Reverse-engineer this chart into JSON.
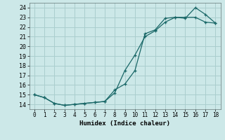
{
  "xlabel": "Humidex (Indice chaleur)",
  "background_color": "#cce8e8",
  "grid_color": "#aacece",
  "line_color": "#1a6868",
  "xlim": [
    -0.5,
    18.5
  ],
  "ylim": [
    13.5,
    24.5
  ],
  "xticks": [
    0,
    1,
    2,
    3,
    4,
    5,
    6,
    7,
    8,
    9,
    10,
    11,
    12,
    13,
    14,
    15,
    16,
    17,
    18
  ],
  "yticks": [
    14,
    15,
    16,
    17,
    18,
    19,
    20,
    21,
    22,
    23,
    24
  ],
  "series1_x": [
    0,
    1,
    2,
    3,
    4,
    5,
    6,
    7,
    8,
    9,
    10,
    11,
    12,
    13,
    14,
    15,
    16,
    17,
    18
  ],
  "series1_y": [
    15.0,
    14.7,
    14.1,
    13.9,
    14.0,
    14.1,
    14.2,
    14.3,
    15.5,
    16.1,
    17.5,
    21.3,
    21.7,
    22.9,
    23.0,
    22.9,
    24.0,
    23.3,
    22.4
  ],
  "series2_x": [
    0,
    1,
    2,
    3,
    4,
    5,
    6,
    7,
    8,
    9,
    10,
    11,
    12,
    13,
    14,
    15,
    16,
    17,
    18
  ],
  "series2_y": [
    15.0,
    14.7,
    14.1,
    13.9,
    14.0,
    14.1,
    14.2,
    14.3,
    15.2,
    17.5,
    19.1,
    21.0,
    21.6,
    22.5,
    23.0,
    23.0,
    23.0,
    22.5,
    22.4
  ]
}
